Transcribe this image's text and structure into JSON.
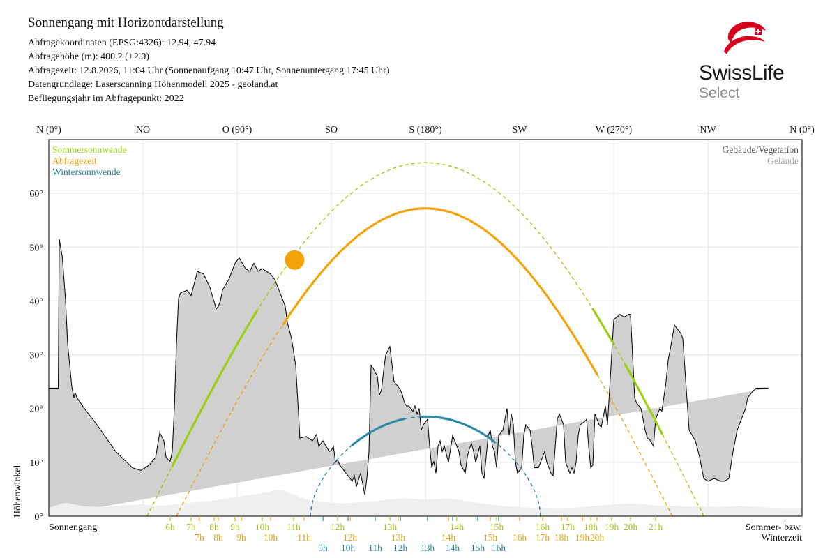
{
  "header": {
    "title": "Sonnengang mit Horizontdarstellung",
    "lines": [
      "Abfragekoordinaten (EPSG:4326): 12.94, 47.94",
      "Abfragehöhe (m): 400.2 (+2.0)",
      "Abfragezeit: 12.8.2026, 11:04 Uhr (Sonnenaufgang 10:47 Uhr,  Sonnenuntergang 17:45 Uhr)",
      "Datengrundlage: Laserscanning Höhenmodell 2025 - geoland.at",
      "Befliegungsjahr im Abfragepunkt: 2022"
    ]
  },
  "logo": {
    "word": "SwissLife",
    "sub": "Select",
    "color": "#d6001c"
  },
  "chart_data": {
    "type": "line",
    "x_label": "Azimut",
    "ylabel": "Höhenwinkel",
    "xlim": [
      0,
      360
    ],
    "ylim": [
      0,
      65
    ],
    "grid": true,
    "top_ticks": [
      {
        "az": 0,
        "label": "N (0°)"
      },
      {
        "az": 45,
        "label": "NO"
      },
      {
        "az": 90,
        "label": "O (90°)"
      },
      {
        "az": 135,
        "label": "SO"
      },
      {
        "az": 180,
        "label": "S (180°)"
      },
      {
        "az": 225,
        "label": "SW"
      },
      {
        "az": 270,
        "label": "W (270°)"
      },
      {
        "az": 315,
        "label": "NW"
      },
      {
        "az": 360,
        "label": "N (0°)"
      }
    ],
    "y_ticks": [
      0,
      10,
      20,
      30,
      40,
      50,
      60
    ],
    "y_tick_suffix": "°",
    "legend_left": [
      {
        "name": "Sommersonnwende",
        "color": "#9bcf0f"
      },
      {
        "name": "Abfragezeit",
        "color": "#f5a30a"
      },
      {
        "name": "Wintersonnwende",
        "color": "#2e8aa6"
      }
    ],
    "legend_right": [
      {
        "name": "Gebäude/Vegetation",
        "color": "#555555"
      },
      {
        "name": "Gelände",
        "color": "#aaaaaa"
      }
    ],
    "bottom_left_label": "Sonnengang",
    "bottom_right_label_1": "Sommer- bzw.",
    "bottom_right_label_2": "Winterzeit",
    "horizon": {
      "az": [
        0,
        4.5,
        4.5,
        5,
        6.5,
        8,
        9,
        11,
        12,
        12.5,
        13.5,
        17,
        23,
        32,
        40,
        44,
        48,
        50,
        51,
        53,
        55,
        56,
        57,
        58,
        59,
        60,
        61,
        62,
        63,
        66,
        68,
        71,
        74,
        77,
        80,
        81,
        82,
        83,
        86,
        89,
        91,
        94,
        96,
        98,
        100,
        102,
        104,
        106,
        108,
        111,
        113,
        114,
        116,
        118,
        120,
        123,
        126,
        128,
        129,
        131,
        134,
        135,
        136,
        137,
        138,
        139,
        141,
        143,
        144,
        145,
        146,
        147,
        149,
        150,
        151,
        152,
        153,
        154,
        155,
        157,
        158,
        159,
        160,
        161,
        163,
        165,
        166,
        167,
        168,
        169,
        170,
        171,
        172,
        173,
        174,
        175,
        176,
        177,
        178,
        179,
        181,
        182,
        183,
        184,
        185,
        186,
        187,
        188,
        189,
        191,
        193,
        196,
        197,
        199,
        200,
        201,
        202,
        203,
        204,
        206,
        207,
        208,
        210,
        211,
        212,
        213,
        214,
        215,
        217,
        218,
        219,
        220,
        221,
        222,
        223,
        224,
        226,
        227,
        228,
        230,
        231,
        232,
        234,
        236,
        237,
        238,
        240,
        241,
        243,
        244,
        246,
        247,
        248,
        249,
        250,
        251,
        252,
        253,
        254,
        256,
        257,
        258,
        259,
        260,
        261,
        262,
        263,
        264,
        266,
        267,
        270,
        273,
        275,
        277,
        278,
        280,
        281,
        283,
        284,
        285,
        286,
        287,
        289,
        290,
        291,
        292,
        293,
        295,
        296,
        297,
        299,
        300,
        302,
        303,
        306,
        309,
        311,
        313,
        315,
        318,
        321,
        323,
        325,
        327,
        329,
        331,
        333,
        334,
        336,
        338,
        341,
        344,
        347,
        350,
        353,
        356,
        358,
        360
      ],
      "alt": [
        23.8,
        23.8,
        23.8,
        51.5,
        48,
        40,
        32,
        24,
        22,
        23,
        22,
        20,
        17,
        12,
        9,
        8.5,
        9.5,
        10.5,
        10.8,
        15.5,
        14,
        11,
        10.5,
        10.2,
        12,
        20,
        32,
        40.5,
        41.5,
        42,
        41,
        45.5,
        45,
        42.5,
        38.5,
        39,
        40,
        42,
        44,
        47,
        48,
        46,
        45.5,
        47,
        45.5,
        46,
        45.5,
        45,
        44,
        41,
        39,
        36,
        33,
        28,
        14.5,
        14.8,
        14,
        15.2,
        13,
        14,
        12,
        12.2,
        13,
        10,
        10.5,
        9.5,
        8.5,
        7.5,
        7,
        6.5,
        7.5,
        5.5,
        8,
        6,
        4,
        7,
        12,
        28,
        27.5,
        26,
        22.5,
        23.5,
        27,
        30,
        31.5,
        25,
        24.5,
        24,
        23.5,
        22.5,
        21,
        20.5,
        20.5,
        20,
        19.5,
        20.5,
        19,
        20,
        16,
        17,
        18,
        13,
        9,
        10.2,
        8,
        13,
        14,
        12,
        13,
        10,
        15,
        12,
        9.5,
        8,
        11,
        12.5,
        13.5,
        12,
        10,
        13,
        8,
        7,
        15,
        16,
        13,
        12,
        9,
        15,
        16,
        18,
        20,
        15,
        19,
        17,
        10,
        8,
        9,
        15,
        17,
        16,
        13,
        9,
        9,
        11,
        12,
        10,
        8,
        7.5,
        18,
        19,
        17,
        10,
        9,
        8,
        9,
        8,
        10,
        15,
        17,
        17.5,
        18,
        13,
        9,
        9.5,
        19,
        18,
        17,
        16.5,
        20.5,
        17,
        36.5,
        37.5,
        37,
        37.5,
        37.5,
        22,
        21,
        20,
        18,
        16,
        14.5,
        14.3,
        13,
        18,
        19,
        20,
        19.5,
        25,
        29,
        31,
        35.5,
        35,
        34,
        33,
        16,
        14,
        11,
        7,
        6.5,
        7,
        6.5,
        6.5,
        7,
        12,
        16,
        18,
        20,
        22,
        23,
        23.8,
        23.8,
        23.8
      ]
    },
    "terrain": {
      "az": [
        0,
        5,
        8,
        12,
        17,
        20,
        25,
        30,
        35,
        40,
        45,
        50,
        55,
        60,
        65,
        70,
        75,
        80,
        85,
        90,
        95,
        100,
        105,
        108,
        112,
        115,
        118,
        120,
        122,
        125,
        130,
        135,
        140,
        145,
        150,
        155,
        160,
        165,
        170,
        175,
        180,
        185,
        190,
        195,
        200,
        205,
        210,
        215,
        220,
        225,
        230,
        235,
        240,
        245,
        250,
        255,
        260,
        265,
        270,
        275,
        280,
        285,
        290,
        295,
        300,
        305,
        310,
        315,
        320,
        325,
        330,
        335,
        340,
        345,
        350,
        355,
        360
      ],
      "alt": [
        1.5,
        2.2,
        2.5,
        2.2,
        1.8,
        1.8,
        1.7,
        1.8,
        2,
        2.1,
        2.2,
        2,
        2,
        2.2,
        2.4,
        2.6,
        2.8,
        3,
        3.3,
        3.6,
        3.9,
        4.2,
        4.5,
        4.9,
        4.8,
        4.3,
        3.9,
        3.5,
        3.2,
        3,
        2.7,
        2.5,
        2.4,
        2.5,
        2.6,
        2.8,
        3,
        3.2,
        3.3,
        3.2,
        3.1,
        3.2,
        3.3,
        3.1,
        2.8,
        2.5,
        2.2,
        2,
        1.8,
        1.7,
        1.6,
        1.6,
        1.5,
        1.5,
        1.6,
        1.7,
        1.9,
        2,
        2.2,
        2.3,
        2.3,
        2.2,
        2,
        2,
        1.9,
        1.8,
        1.8,
        1.8,
        1.7,
        1.8,
        1.9,
        1.8,
        1.7,
        1.6,
        1.5,
        1.5,
        1.5
      ]
    },
    "paths": [
      {
        "name": "Sommersonnwende",
        "color": "#9bcf0f",
        "mode": "cos",
        "az_start": 47,
        "az_end": 313,
        "max_alt": 65.7,
        "az_peak": 180,
        "power": 1.0,
        "visible": [
          [
            59,
            99.5
          ],
          [
            260,
            270
          ],
          [
            275.5,
            293
          ]
        ]
      },
      {
        "name": "Abfragezeit",
        "color": "#f5a30a",
        "mode": "cos",
        "az_start": 61,
        "az_end": 298,
        "max_alt": 57.2,
        "az_peak": 180,
        "power": 1.0,
        "visible": [
          [
            112,
            262
          ]
        ]
      },
      {
        "name": "Wintersonnwende",
        "color": "#2e8aa6",
        "mode": "cos",
        "az_start": 125,
        "az_end": 235,
        "max_alt": 18.5,
        "az_peak": 180,
        "power": 0.55,
        "visible": [
          [
            145,
            170
          ],
          [
            178,
            213
          ]
        ]
      }
    ],
    "sun_marker": {
      "az": 117.5,
      "alt": 47.6,
      "color": "#f5a30a"
    },
    "hour_rows": [
      {
        "color": "#a9c51a",
        "labels": [
          {
            "az": 58,
            "t": "6h"
          },
          {
            "az": 68,
            "t": "7h"
          },
          {
            "az": 79,
            "t": "8h"
          },
          {
            "az": 89,
            "t": "9h"
          },
          {
            "az": 102,
            "t": "10h"
          },
          {
            "az": 117,
            "t": "11h"
          },
          {
            "az": 138,
            "t": "12h"
          },
          {
            "az": 163,
            "t": "13h"
          },
          {
            "az": 195,
            "t": "14h"
          },
          {
            "az": 214,
            "t": "15h"
          },
          {
            "az": 236,
            "t": "16h"
          },
          {
            "az": 248,
            "t": "17h"
          },
          {
            "az": 259,
            "t": "18h"
          },
          {
            "az": 269,
            "t": "19h"
          },
          {
            "az": 278,
            "t": "20h"
          },
          {
            "az": 290,
            "t": "21h"
          }
        ]
      },
      {
        "color": "#e8a30e",
        "labels": [
          {
            "az": 72,
            "t": "7h"
          },
          {
            "az": 81,
            "t": "8h"
          },
          {
            "az": 92,
            "t": "9h"
          },
          {
            "az": 106,
            "t": "10h"
          },
          {
            "az": 122,
            "t": "11h"
          },
          {
            "az": 144,
            "t": "12h"
          },
          {
            "az": 167,
            "t": "13h"
          },
          {
            "az": 191,
            "t": "14h"
          },
          {
            "az": 211,
            "t": "15h"
          },
          {
            "az": 225,
            "t": "16h"
          },
          {
            "az": 236,
            "t": "17h"
          },
          {
            "az": 245,
            "t": "18h"
          },
          {
            "az": 255,
            "t": "19h"
          },
          {
            "az": 262,
            "t": "20h"
          }
        ]
      },
      {
        "color": "#2e8aa6",
        "labels": [
          {
            "az": 131,
            "t": "9h"
          },
          {
            "az": 143,
            "t": "10h"
          },
          {
            "az": 156,
            "t": "11h"
          },
          {
            "az": 168,
            "t": "12h"
          },
          {
            "az": 181,
            "t": "13h"
          },
          {
            "az": 193,
            "t": "14h"
          },
          {
            "az": 205,
            "t": "15h"
          },
          {
            "az": 215,
            "t": "16h"
          }
        ]
      }
    ]
  }
}
